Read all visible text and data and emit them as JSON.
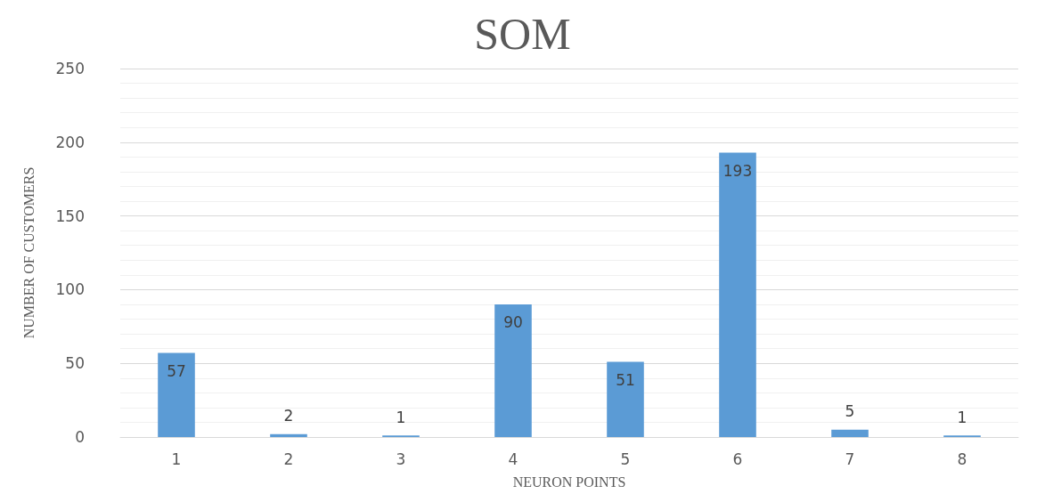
{
  "chart_data": {
    "type": "bar",
    "title": "SOM",
    "xlabel": "NEURON POINTS",
    "ylabel": "NUMBER OF CUSTOMERS",
    "categories": [
      "1",
      "2",
      "3",
      "4",
      "5",
      "6",
      "7",
      "8"
    ],
    "values": [
      57,
      2,
      1,
      90,
      51,
      193,
      5,
      1
    ],
    "color": "#5b9bd5",
    "ylim": [
      0,
      250
    ],
    "yticks": [
      0,
      50,
      100,
      150,
      200,
      250
    ],
    "grid": "y",
    "data_labels": true
  }
}
